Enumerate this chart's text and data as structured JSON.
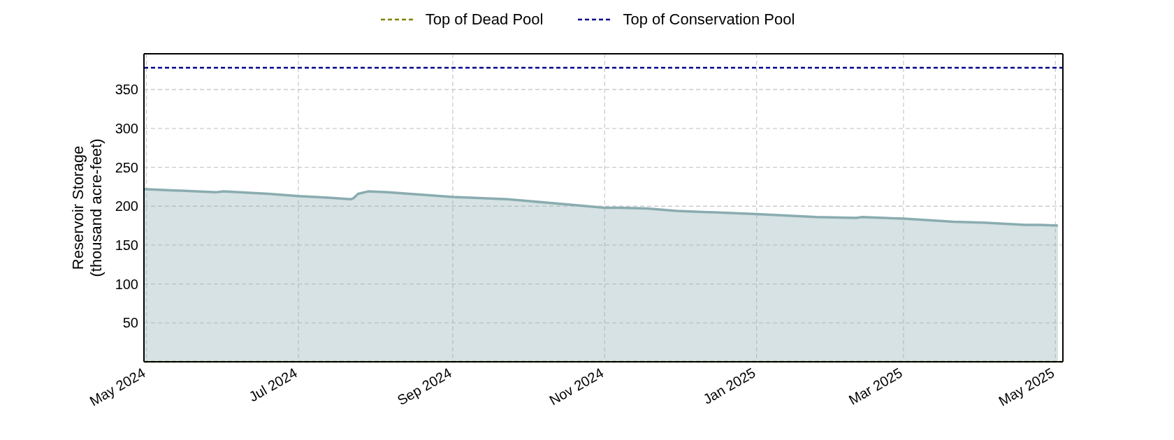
{
  "chart_data": {
    "type": "area",
    "ylabel": "Reservoir Storage\n(thousand acre-feet)",
    "x": [
      "2024-04-30",
      "2024-05-29",
      "2024-06-01",
      "2024-06-19",
      "2024-07-01",
      "2024-07-13",
      "2024-07-22",
      "2024-07-23",
      "2024-07-25",
      "2024-07-29",
      "2024-08-06",
      "2024-09-01",
      "2024-09-08",
      "2024-09-23",
      "2024-10-18",
      "2024-11-01",
      "2024-11-07",
      "2024-11-18",
      "2024-11-30",
      "2025-01-01",
      "2025-01-25",
      "2025-02-10",
      "2025-02-12",
      "2025-03-01",
      "2025-03-21",
      "2025-04-02",
      "2025-04-19",
      "2025-04-25",
      "2025-05-02"
    ],
    "series": [
      {
        "color": "#8aacb0",
        "values": [
          222,
          218,
          219,
          216,
          213,
          211,
          209,
          210,
          216,
          219,
          218,
          212,
          211,
          209,
          202,
          198,
          198,
          197,
          194,
          190,
          186,
          185,
          186,
          184,
          180,
          179,
          176,
          176,
          175
        ]
      }
    ],
    "xlim": [
      "2024-04-30",
      "2025-05-04"
    ],
    "xticks": [
      {
        "value": "2024-05-01",
        "label": "May 2024"
      },
      {
        "value": "2024-07-01",
        "label": "Jul 2024"
      },
      {
        "value": "2024-09-01",
        "label": "Sep 2024"
      },
      {
        "value": "2024-11-01",
        "label": "Nov 2024"
      },
      {
        "value": "2025-01-01",
        "label": "Jan 2025"
      },
      {
        "value": "2025-03-01",
        "label": "Mar 2025"
      },
      {
        "value": "2025-05-01",
        "label": "May 2025"
      }
    ],
    "ylim": [
      0,
      396
    ],
    "yticks": [
      50,
      100,
      150,
      200,
      250,
      300,
      350
    ],
    "ref_lines": [
      {
        "axis": "y",
        "value": 0,
        "label": "Top of Dead Pool",
        "color": "#808000",
        "line_style": "dashed"
      },
      {
        "axis": "y",
        "value": 378,
        "label": "Top of Conservation Pool",
        "color": "#00008b",
        "line_style": "dashed"
      }
    ],
    "grid": true,
    "legend": "top"
  }
}
